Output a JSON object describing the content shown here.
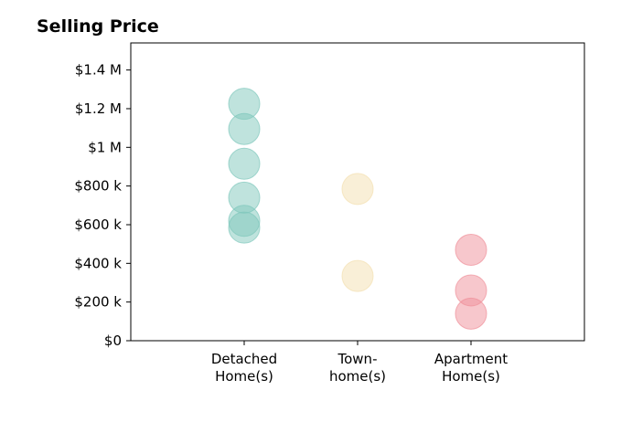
{
  "chart_data": {
    "type": "scatter",
    "title": "Selling Price",
    "xlabel": "",
    "ylabel": "",
    "categories": [
      [
        "Detached",
        "Home(s)"
      ],
      [
        "Town-",
        "home(s)"
      ],
      [
        "Apartment",
        "Home(s)"
      ]
    ],
    "xlim": [
      -1,
      3
    ],
    "ylim": [
      0,
      1540000
    ],
    "yticks": [
      0,
      200000,
      400000,
      600000,
      800000,
      1000000,
      1200000,
      1400000
    ],
    "ytick_labels": [
      "$0",
      "$200 k",
      "$400 k",
      "$600 k",
      "$800 k",
      "$1 M",
      "$1.2 M",
      "$1.4 M"
    ],
    "grid": false,
    "series": [
      {
        "category_index": 0,
        "color": "#7FC7BC",
        "values": [
          1225000,
          1095000,
          915000,
          740000,
          620000,
          585000
        ]
      },
      {
        "category_index": 1,
        "color": "#F3DFB0",
        "values": [
          785000,
          335000
        ]
      },
      {
        "category_index": 2,
        "color": "#F0909A",
        "values": [
          470000,
          260000,
          140000
        ]
      }
    ]
  }
}
